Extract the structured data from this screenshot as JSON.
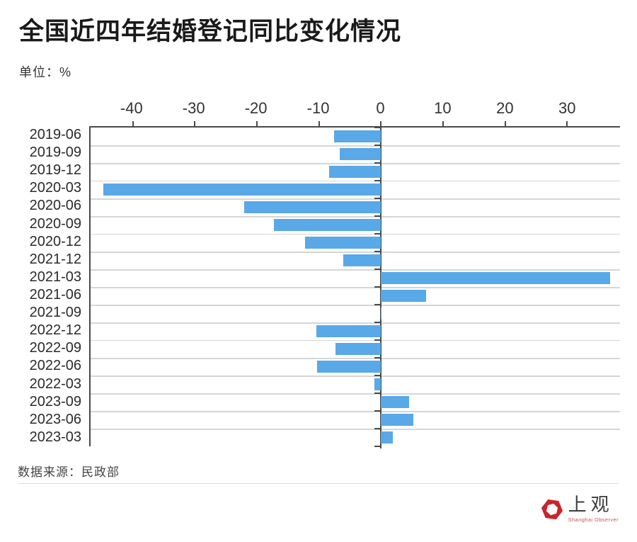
{
  "header": {
    "title": "全国近四年结婚登记同比变化情况",
    "unit_label": "单位：%"
  },
  "footer": {
    "source": "数据来源：民政部"
  },
  "logo": {
    "name": "上观",
    "subtitle": "Shanghai Observer",
    "brand_color": "#c8252c"
  },
  "chart_data": {
    "type": "bar",
    "orientation": "horizontal",
    "title": "全国近四年结婚登记同比变化情况",
    "unit": "%",
    "categories": [
      "2019-06",
      "2019-09",
      "2019-12",
      "2020-03",
      "2020-06",
      "2020-09",
      "2020-12",
      "2021-12",
      "2021-03",
      "2021-06",
      "2021-09",
      "2022-12",
      "2022-09",
      "2022-06",
      "2022-03",
      "2023-09",
      "2023-06",
      "2023-03"
    ],
    "values": [
      -7.6,
      -6.7,
      -8.4,
      -44.7,
      -22.0,
      -17.3,
      -12.2,
      -6.1,
      36.9,
      7.3,
      -0.1,
      -10.4,
      -7.4,
      -10.3,
      -1.1,
      4.5,
      5.2,
      1.9
    ],
    "x_ticks": [
      -40,
      -30,
      -20,
      -10,
      0,
      10,
      20,
      30
    ],
    "xlim": [
      -46.8,
      38.5
    ],
    "bar_color": "#59a8e8",
    "grid": true,
    "gridline_color": "#d6d6d6",
    "axis_color": "#4a4a4a",
    "source": "数据来源：民政部"
  }
}
